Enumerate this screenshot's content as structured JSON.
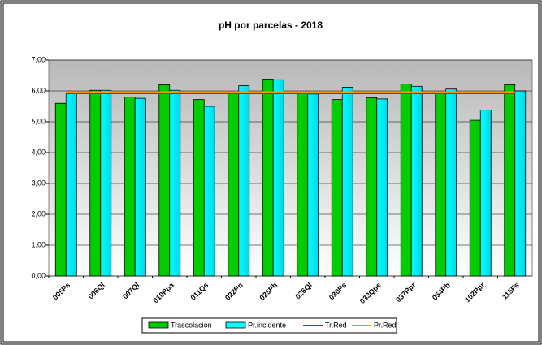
{
  "chart_data": {
    "type": "bar",
    "title": "pH por parcelas - 2018",
    "categories": [
      "005Ps",
      "006Ql",
      "007Ql",
      "010Ppa",
      "011Qs",
      "022Pn",
      "025Ph",
      "026Ql",
      "030Ps",
      "033Qpe",
      "037Ppr",
      "054Ph",
      "102Ppr",
      "115Fs"
    ],
    "series": [
      {
        "name": "Trascolación",
        "color": "#00cc00",
        "type": "bar",
        "values": [
          5.6,
          6.02,
          5.8,
          6.2,
          5.72,
          5.92,
          6.38,
          5.92,
          5.72,
          5.78,
          6.22,
          5.92,
          5.05,
          6.2
        ]
      },
      {
        "name": "Pr.incidente",
        "color": "#00ffff",
        "type": "bar",
        "values": [
          5.92,
          6.02,
          5.76,
          6.02,
          5.5,
          6.17,
          6.36,
          5.9,
          6.12,
          5.74,
          6.15,
          6.06,
          5.38,
          6.0
        ]
      },
      {
        "name": "Tr.Red",
        "color": "#ff0000",
        "type": "line",
        "values": [
          5.92,
          5.92,
          5.92,
          5.92,
          5.92,
          5.92,
          5.92,
          5.92,
          5.92,
          5.92,
          5.92,
          5.92,
          5.92,
          5.92
        ]
      },
      {
        "name": "Pr.Red",
        "color": "#ff9900",
        "type": "line",
        "values": [
          5.96,
          5.96,
          5.96,
          5.96,
          5.96,
          5.96,
          5.96,
          5.96,
          5.96,
          5.96,
          5.96,
          5.96,
          5.96,
          5.96
        ]
      }
    ],
    "ylim": [
      0,
      7
    ],
    "yticks": [
      {
        "value": 0,
        "label": "0,00"
      },
      {
        "value": 1,
        "label": "1,00"
      },
      {
        "value": 2,
        "label": "2,00"
      },
      {
        "value": 3,
        "label": "3,00"
      },
      {
        "value": 4,
        "label": "4,00"
      },
      {
        "value": 5,
        "label": "5,00"
      },
      {
        "value": 6,
        "label": "6,00"
      },
      {
        "value": 7,
        "label": "7,00"
      }
    ],
    "grid": true,
    "legend": "bottom"
  }
}
